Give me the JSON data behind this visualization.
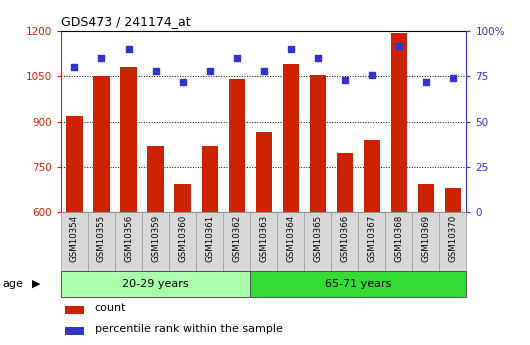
{
  "title": "GDS473 / 241174_at",
  "samples": [
    "GSM10354",
    "GSM10355",
    "GSM10356",
    "GSM10359",
    "GSM10360",
    "GSM10361",
    "GSM10362",
    "GSM10363",
    "GSM10364",
    "GSM10365",
    "GSM10366",
    "GSM10367",
    "GSM10368",
    "GSM10369",
    "GSM10370"
  ],
  "counts": [
    920,
    1052,
    1080,
    820,
    693,
    818,
    1040,
    867,
    1090,
    1055,
    795,
    840,
    1195,
    693,
    680
  ],
  "percentile": [
    80,
    85,
    90,
    78,
    72,
    78,
    85,
    78,
    90,
    85,
    73,
    76,
    92,
    72,
    74
  ],
  "group1_label": "20-29 years",
  "group2_label": "65-71 years",
  "group1_count": 7,
  "group2_count": 8,
  "ylim_left": [
    600,
    1200
  ],
  "ylim_right": [
    0,
    100
  ],
  "yticks_left": [
    600,
    750,
    900,
    1050,
    1200
  ],
  "yticks_right": [
    0,
    25,
    50,
    75,
    100
  ],
  "bar_color": "#CC2200",
  "dot_color": "#3333CC",
  "group1_color": "#AAFFAA",
  "group2_color": "#33DD33",
  "tick_cell_color": "#D8D8D8",
  "tick_cell_border": "#999999",
  "age_label": "age",
  "legend_count": "count",
  "legend_percentile": "percentile rank within the sample",
  "plot_bg": "#FFFFFF"
}
